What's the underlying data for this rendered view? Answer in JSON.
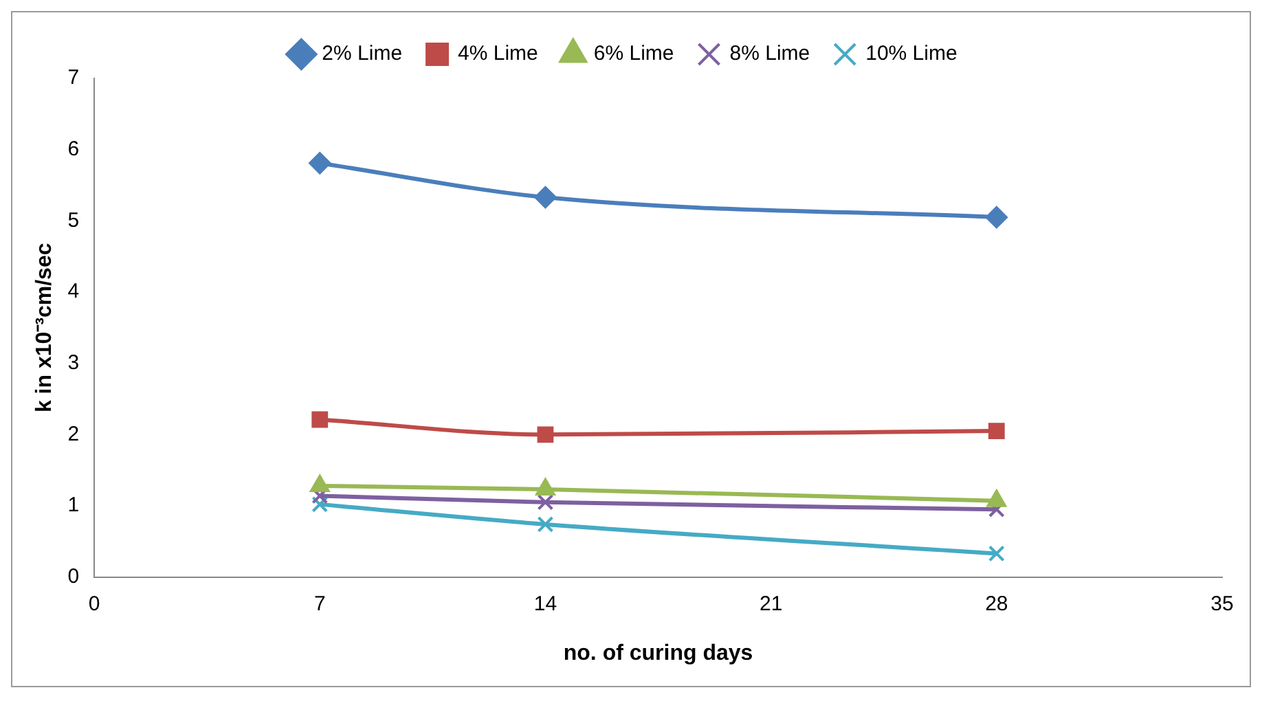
{
  "chart_data": {
    "type": "line",
    "xlabel": "no. of curing days",
    "ylabel": "k in x10⁻³cm/sec",
    "x": [
      7,
      14,
      28
    ],
    "xlim": [
      0,
      35
    ],
    "xticks": [
      0,
      7,
      14,
      21,
      28,
      35
    ],
    "ylim": [
      0,
      7
    ],
    "yticks": [
      0,
      1,
      2,
      3,
      4,
      5,
      6,
      7
    ],
    "grid": false,
    "legend": "top",
    "series": [
      {
        "name": "2% Lime",
        "color": "#4a7ebb",
        "marker": "diamond",
        "values": [
          5.81,
          5.33,
          5.05
        ]
      },
      {
        "name": "4% Lime",
        "color": "#be4b48",
        "marker": "square",
        "values": [
          2.21,
          2.0,
          2.05
        ]
      },
      {
        "name": "6% Lime",
        "color": "#98b954",
        "marker": "triangle",
        "values": [
          1.28,
          1.23,
          1.07
        ]
      },
      {
        "name": "8% Lime",
        "color": "#7d60a0",
        "marker": "cross",
        "values": [
          1.14,
          1.05,
          0.95
        ]
      },
      {
        "name": "10% Lime",
        "color": "#46aac5",
        "marker": "cross",
        "values": [
          1.02,
          0.74,
          0.33
        ]
      }
    ]
  }
}
